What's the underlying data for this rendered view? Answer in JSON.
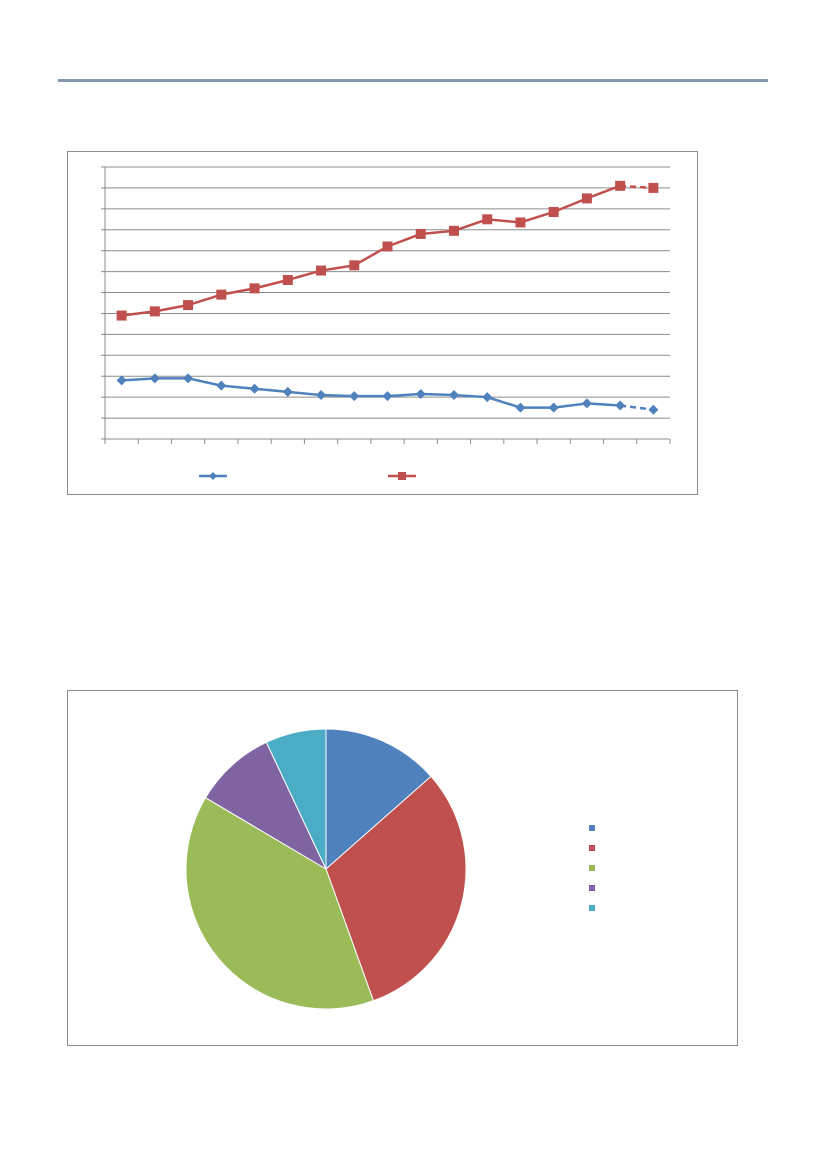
{
  "header": {
    "rule_color": "#8497b0"
  },
  "chart_data": [
    {
      "type": "line",
      "title": "",
      "xlabel": "",
      "ylabel": "",
      "grid": true,
      "ylim": [
        0,
        13
      ],
      "y_gridline_step": 1,
      "x_count": 17,
      "legend_position": "bottom",
      "series": [
        {
          "color": "#4f81bd",
          "marker": "diamond",
          "values": [
            2.8,
            2.9,
            2.9,
            2.55,
            2.4,
            2.25,
            2.1,
            2.05,
            2.05,
            2.15,
            2.1,
            2.0,
            1.5,
            1.5,
            1.7,
            1.6,
            1.4
          ],
          "dashed_last_segment": true
        },
        {
          "color": "#c0504d",
          "marker": "square",
          "values": [
            5.9,
            6.1,
            6.4,
            6.9,
            7.2,
            7.6,
            8.05,
            8.3,
            9.2,
            9.8,
            9.95,
            10.5,
            10.35,
            10.85,
            11.5,
            12.1,
            12.0
          ],
          "dashed_last_segment": true
        }
      ]
    },
    {
      "type": "pie",
      "title": "",
      "legend_position": "right",
      "slices": [
        {
          "value": 13.5,
          "color": "#4f81bd"
        },
        {
          "value": 31.0,
          "color": "#c0504d"
        },
        {
          "value": 39.0,
          "color": "#9bbb59"
        },
        {
          "value": 9.5,
          "color": "#8064a2"
        },
        {
          "value": 7.0,
          "color": "#4bacc6"
        }
      ]
    }
  ]
}
